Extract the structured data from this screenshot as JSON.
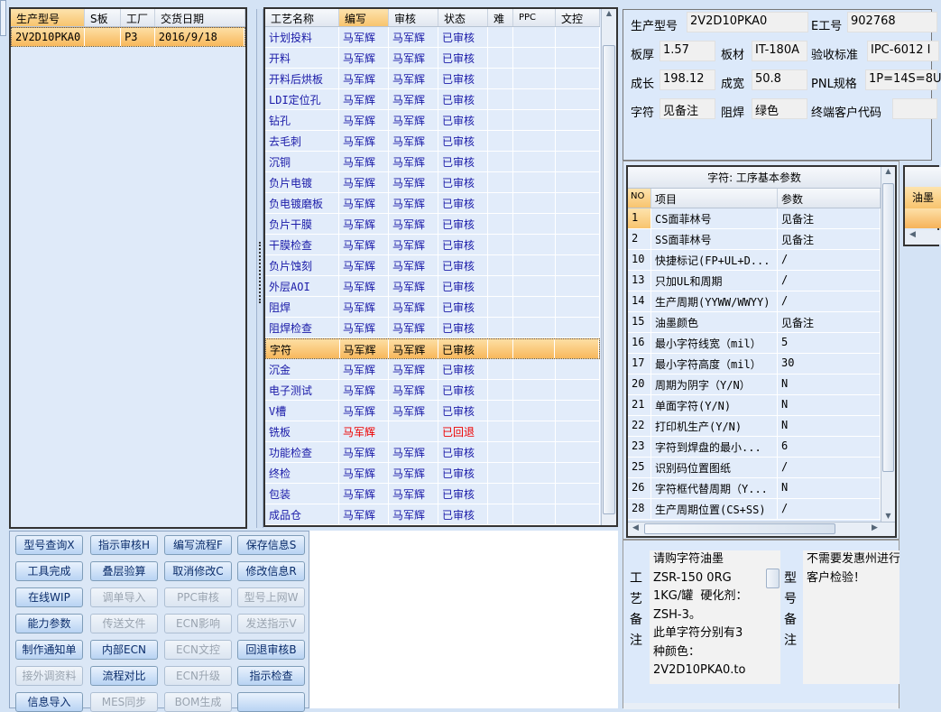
{
  "order_grid": {
    "headers": [
      "生产型号",
      "S板",
      "工厂",
      "交货日期"
    ],
    "rows": [
      [
        "2V2D10PKA0",
        "",
        "P3",
        "2016/9/18"
      ]
    ]
  },
  "process_grid": {
    "headers": [
      "工艺名称",
      "编写",
      "审核",
      "状态",
      "难",
      "PPC",
      "文控"
    ],
    "rows": [
      [
        "计划投料",
        "马军辉",
        "马军辉",
        "已审核"
      ],
      [
        "开料",
        "马军辉",
        "马军辉",
        "已审核"
      ],
      [
        "开料后烘板",
        "马军辉",
        "马军辉",
        "已审核"
      ],
      [
        "LDI定位孔",
        "马军辉",
        "马军辉",
        "已审核"
      ],
      [
        "钻孔",
        "马军辉",
        "马军辉",
        "已审核"
      ],
      [
        "去毛刺",
        "马军辉",
        "马军辉",
        "已审核"
      ],
      [
        "沉铜",
        "马军辉",
        "马军辉",
        "已审核"
      ],
      [
        "负片电镀",
        "马军辉",
        "马军辉",
        "已审核"
      ],
      [
        "负电镀磨板",
        "马军辉",
        "马军辉",
        "已审核"
      ],
      [
        "负片干膜",
        "马军辉",
        "马军辉",
        "已审核"
      ],
      [
        "干膜检查",
        "马军辉",
        "马军辉",
        "已审核"
      ],
      [
        "负片蚀刻",
        "马军辉",
        "马军辉",
        "已审核"
      ],
      [
        "外层AOI",
        "马军辉",
        "马军辉",
        "已审核"
      ],
      [
        "阻焊",
        "马军辉",
        "马军辉",
        "已审核"
      ],
      [
        "阻焊检查",
        "马军辉",
        "马军辉",
        "已审核"
      ],
      [
        "字符",
        "马军辉",
        "马军辉",
        "已审核"
      ],
      [
        "沉金",
        "马军辉",
        "马军辉",
        "已审核"
      ],
      [
        "电子测试",
        "马军辉",
        "马军辉",
        "已审核"
      ],
      [
        "V槽",
        "马军辉",
        "马军辉",
        "已审核"
      ],
      [
        "铣板",
        "马军辉",
        "",
        "已回退"
      ],
      [
        "功能检查",
        "马军辉",
        "马军辉",
        "已审核"
      ],
      [
        "终检",
        "马军辉",
        "马军辉",
        "已审核"
      ],
      [
        "包装",
        "马军辉",
        "马军辉",
        "已审核"
      ],
      [
        "成品仓",
        "马军辉",
        "马军辉",
        "已审核"
      ]
    ],
    "selected_index": 15,
    "returned_index": 19
  },
  "buttons": [
    {
      "label": "型号查询X",
      "enabled": true
    },
    {
      "label": "指示审核H",
      "enabled": true
    },
    {
      "label": "编写流程F",
      "enabled": true
    },
    {
      "label": "保存信息S",
      "enabled": true
    },
    {
      "label": "工具完成",
      "enabled": true
    },
    {
      "label": "叠层验算",
      "enabled": true
    },
    {
      "label": "取消修改C",
      "enabled": true
    },
    {
      "label": "修改信息R",
      "enabled": true
    },
    {
      "label": "在线WIP",
      "enabled": true
    },
    {
      "label": "调单导入",
      "enabled": false
    },
    {
      "label": "PPC审核",
      "enabled": false
    },
    {
      "label": "型号上网W",
      "enabled": false
    },
    {
      "label": "能力参数",
      "enabled": true
    },
    {
      "label": "传送文件",
      "enabled": false
    },
    {
      "label": "ECN影响",
      "enabled": false
    },
    {
      "label": "发送指示V",
      "enabled": false
    },
    {
      "label": "制作通知单",
      "enabled": true
    },
    {
      "label": "内部ECN",
      "enabled": true
    },
    {
      "label": "ECN文控",
      "enabled": false
    },
    {
      "label": "回退审核B",
      "enabled": true
    },
    {
      "label": "接外调资料",
      "enabled": false
    },
    {
      "label": "流程对比",
      "enabled": true
    },
    {
      "label": "ECN升级",
      "enabled": false
    },
    {
      "label": "指示检查",
      "enabled": true
    },
    {
      "label": "信息导入",
      "enabled": true
    },
    {
      "label": "MES同步",
      "enabled": false
    },
    {
      "label": "BOM生成",
      "enabled": false
    },
    {
      "label": "",
      "enabled": true
    }
  ],
  "info": {
    "model_label": "生产型号",
    "model": "2V2D10PKA0",
    "e_label": "E工号",
    "e_no": "902768",
    "thick_label": "板厚",
    "thick": "1.57",
    "material_label": "板材",
    "material": "IT-180A",
    "std_label": "验收标准",
    "std": "IPC-6012 I",
    "len_label": "成长",
    "len": "198.12",
    "width_label": "成宽",
    "width": "50.8",
    "pnl_label": "PNL规格",
    "pnl": "1P=14S=8U",
    "char_label": "字符",
    "char": "见备注",
    "mask_label": "阻焊",
    "mask": "绿色",
    "cust_label": "终端客户代码",
    "cust": ""
  },
  "params": {
    "title": "字符: 工序基本参数",
    "headers": [
      "NO",
      "项目",
      "参数"
    ],
    "rows": [
      [
        "1",
        "CS面菲林号",
        "见备注"
      ],
      [
        "2",
        "SS面菲林号",
        "见备注"
      ],
      [
        "10",
        "快捷标记(FP+UL+D...",
        "/"
      ],
      [
        "13",
        "只加UL和周期",
        "/"
      ],
      [
        "14",
        "生产周期(YYWW/WWYY)",
        "/"
      ],
      [
        "15",
        "油墨颜色",
        "见备注"
      ],
      [
        "16",
        "最小字符线宽（mil）",
        "5"
      ],
      [
        "17",
        "最小字符高度（mil）",
        "30"
      ],
      [
        "20",
        "周期为阴字（Y/N）",
        "N"
      ],
      [
        "21",
        "单面字符(Y/N)",
        "N"
      ],
      [
        "22",
        "打印机生产(Y/N)",
        "N"
      ],
      [
        "23",
        "字符到焊盘的最小...",
        "6"
      ],
      [
        "25",
        "识别码位置图纸",
        "/"
      ],
      [
        "26",
        "字符框代替周期（Y...",
        "N"
      ],
      [
        "28",
        "生产周期位置(CS+SS)",
        "/"
      ]
    ]
  },
  "side_grid": {
    "header": "油墨"
  },
  "remarks": {
    "process_label": "工艺备注",
    "process_text": "请购字符油墨\nZSR-150 0RG\n1KG/罐  硬化剂：\nZSH-3。\n此单字符分别有3\n种颜色：\n2V2D10PKA0.to",
    "model_label": "型号备注",
    "model_text": "不需要发惠州进行\n客户检验！"
  }
}
